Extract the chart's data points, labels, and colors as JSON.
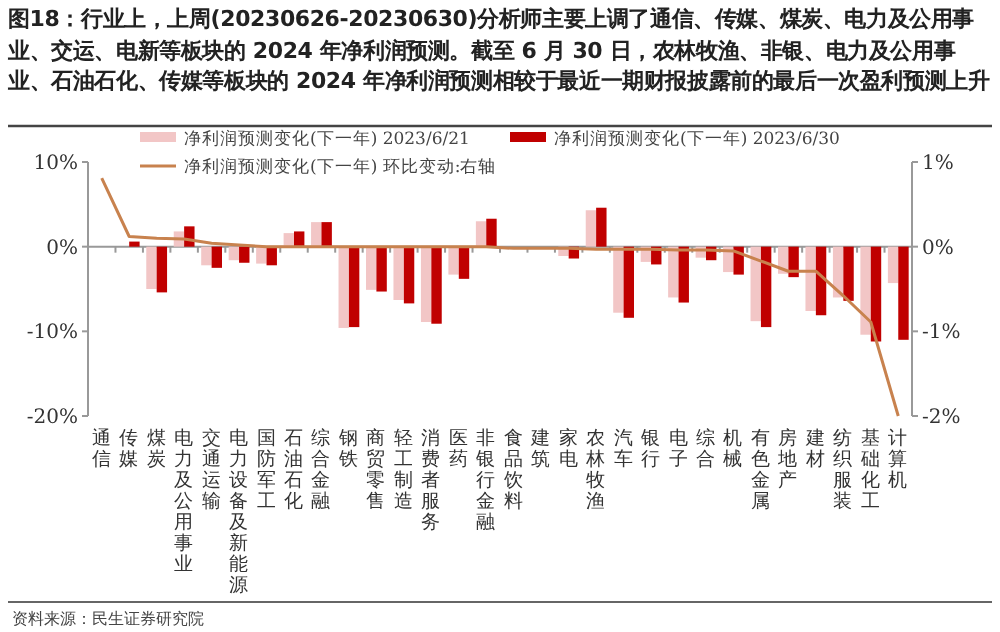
{
  "chart_data": {
    "type": "bar",
    "title": "图18：行业上，上周(20230626-20230630)分析师主要上调了通信、传媒、煤炭、电力及公用事业、交运、电新等板块的 2024 年净利润预测。截至 6 月 30 日，农林牧渔、非银、电力及公用事业、石油石化、传媒等板块的 2024 年净利润预测相较于最近一期财报披露前的最后一次盈利预测上升",
    "categories": [
      "通信",
      "传媒",
      "煤炭",
      "电力及公用事业",
      "交通运输",
      "电力设备及新能源",
      "国防军工",
      "石油石化",
      "综合金融",
      "钢铁",
      "商贸零售",
      "轻工制造",
      "消费者服务",
      "医药",
      "非银行金融",
      "食品饮料",
      "建筑",
      "家电",
      "农林牧渔",
      "汽车",
      "银行",
      "电子",
      "综合",
      "机械",
      "有色金属",
      "房地产",
      "建材",
      "纺织服装",
      "基础化工",
      "计算机"
    ],
    "series": [
      {
        "name": "净利润预测变化(下一年) 2023/6/21",
        "color": "#f2c6c6",
        "values": [
          0,
          null,
          -5.0,
          1.8,
          -2.2,
          -1.6,
          -2.0,
          1.6,
          2.9,
          -9.6,
          -5.1,
          -6.3,
          -8.9,
          -3.3,
          3.0,
          0,
          null,
          -1.1,
          4.3,
          -7.8,
          -1.8,
          -6.0,
          -1.3,
          -3.0,
          -8.8,
          -3.2,
          -7.6,
          -6.0,
          -10.4,
          -4.3
        ]
      },
      {
        "name": "净利润预测变化(下一年) 2023/6/30",
        "color": "#c00000",
        "values": [
          0,
          0.6,
          -5.4,
          2.4,
          -2.5,
          -1.9,
          -2.2,
          1.8,
          2.9,
          -9.5,
          -5.3,
          -6.7,
          -9.1,
          -3.8,
          3.3,
          null,
          null,
          -1.4,
          4.6,
          -8.4,
          -2.1,
          -6.6,
          -1.6,
          -3.3,
          -9.5,
          -3.6,
          -8.1,
          -6.4,
          -11.2,
          -11.0
        ]
      },
      {
        "name": "净利润预测变化(下一年) 环比变动:右轴",
        "type": "line",
        "axis": "y2",
        "color": "#c8824e",
        "values": [
          0.81,
          0.12,
          0.1,
          0.09,
          0.04,
          0.02,
          0,
          0,
          0,
          0,
          0,
          0,
          0,
          0,
          0,
          -0.02,
          -0.02,
          -0.02,
          -0.03,
          -0.03,
          -0.03,
          -0.04,
          -0.04,
          -0.05,
          -0.17,
          -0.29,
          -0.29,
          -0.58,
          -0.89,
          -2.0
        ]
      }
    ],
    "ylim": [
      -20,
      10
    ],
    "yticks": [
      {
        "value": 10,
        "label": "10%"
      },
      {
        "value": 0,
        "label": "0%"
      },
      {
        "value": -10,
        "label": "-10%"
      },
      {
        "value": -20,
        "label": "-20%"
      }
    ],
    "y2lim": [
      -2,
      1
    ],
    "y2ticks": [
      {
        "value": 1,
        "label": "1%"
      },
      {
        "value": 0,
        "label": "0%"
      },
      {
        "value": -1,
        "label": "-1%"
      },
      {
        "value": -2,
        "label": "-2%"
      }
    ],
    "legend": "top",
    "annotations": [
      "资料来源：民生证券研究院"
    ]
  }
}
